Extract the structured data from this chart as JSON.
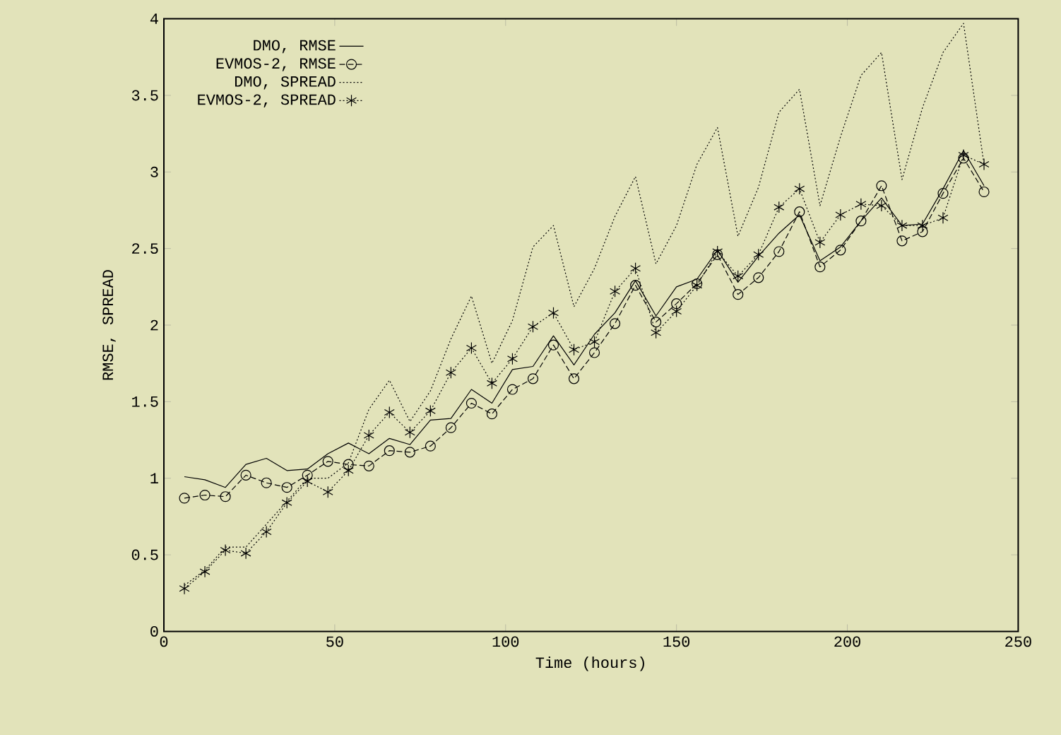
{
  "chart_data": {
    "type": "line",
    "xlabel": "Time (hours)",
    "ylabel": "RMSE, SPREAD",
    "x": [
      6,
      12,
      18,
      24,
      30,
      36,
      42,
      48,
      54,
      60,
      66,
      72,
      78,
      84,
      90,
      96,
      102,
      108,
      114,
      120,
      126,
      132,
      138,
      144,
      150,
      156,
      162,
      168,
      174,
      180,
      186,
      192,
      198,
      204,
      210,
      216,
      222,
      228,
      234,
      240
    ],
    "xlim": [
      0,
      250
    ],
    "xticks": [
      0,
      50,
      100,
      150,
      200,
      250
    ],
    "ylim": [
      0,
      4
    ],
    "yticks": [
      0,
      0.5,
      1,
      1.5,
      2,
      2.5,
      3,
      3.5,
      4
    ],
    "grid": false,
    "legend": "top left",
    "series": [
      {
        "name": "DMO, RMSE",
        "color": "#000000",
        "line_style": "solid",
        "marker": "none",
        "values": [
          1.01,
          0.99,
          0.94,
          1.09,
          1.13,
          1.05,
          1.06,
          1.16,
          1.23,
          1.16,
          1.26,
          1.22,
          1.38,
          1.39,
          1.58,
          1.49,
          1.71,
          1.73,
          1.93,
          1.74,
          1.94,
          2.08,
          2.29,
          2.06,
          2.25,
          2.3,
          2.49,
          2.28,
          2.45,
          2.6,
          2.72,
          2.42,
          2.51,
          2.68,
          2.83,
          2.65,
          2.66,
          2.89,
          3.14,
          2.91
        ]
      },
      {
        "name": "EVMOS-2, RMSE",
        "color": "#000000",
        "line_style": "dashed",
        "marker": "circle",
        "values": [
          0.87,
          0.89,
          0.88,
          1.02,
          0.97,
          0.94,
          1.02,
          1.11,
          1.09,
          1.08,
          1.18,
          1.17,
          1.21,
          1.33,
          1.49,
          1.42,
          1.58,
          1.65,
          1.87,
          1.65,
          1.82,
          2.01,
          2.26,
          2.02,
          2.14,
          2.27,
          2.46,
          2.2,
          2.31,
          2.48,
          2.74,
          2.38,
          2.49,
          2.68,
          2.91,
          2.55,
          2.61,
          2.86,
          3.09,
          2.87
        ]
      },
      {
        "name": "DMO, SPREAD",
        "color": "#000000",
        "line_style": "dotted",
        "marker": "none",
        "values": [
          0.3,
          0.4,
          0.55,
          0.55,
          0.7,
          0.85,
          1.0,
          1.0,
          1.1,
          1.45,
          1.64,
          1.37,
          1.57,
          1.91,
          2.19,
          1.75,
          2.03,
          2.51,
          2.65,
          2.12,
          2.37,
          2.71,
          2.97,
          2.4,
          2.65,
          3.05,
          3.29,
          2.58,
          2.9,
          3.39,
          3.54,
          2.78,
          3.23,
          3.63,
          3.78,
          2.95,
          3.42,
          3.78,
          3.97,
          3.05
        ]
      },
      {
        "name": "EVMOS-2, SPREAD",
        "color": "#000000",
        "line_style": "dotted",
        "marker": "cross",
        "values": [
          0.28,
          0.39,
          0.53,
          0.51,
          0.65,
          0.84,
          0.98,
          0.91,
          1.05,
          1.28,
          1.43,
          1.3,
          1.44,
          1.69,
          1.85,
          1.62,
          1.78,
          1.99,
          2.08,
          1.84,
          1.89,
          2.22,
          2.37,
          1.95,
          2.09,
          2.26,
          2.48,
          2.32,
          2.46,
          2.77,
          2.89,
          2.54,
          2.72,
          2.79,
          2.78,
          2.65,
          2.65,
          2.7,
          3.11,
          3.05
        ]
      }
    ]
  }
}
